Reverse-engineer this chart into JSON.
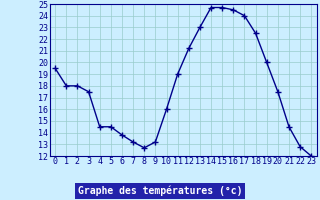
{
  "hours": [
    0,
    1,
    2,
    3,
    4,
    5,
    6,
    7,
    8,
    9,
    10,
    11,
    12,
    13,
    14,
    15,
    16,
    17,
    18,
    19,
    20,
    21,
    22,
    23
  ],
  "temperatures": [
    19.5,
    18.0,
    18.0,
    17.5,
    14.5,
    14.5,
    13.8,
    13.2,
    12.7,
    13.2,
    16.0,
    19.0,
    21.2,
    23.0,
    24.7,
    24.7,
    24.5,
    24.0,
    22.5,
    20.0,
    17.5,
    14.5,
    12.8,
    12.0
  ],
  "line_color": "#00008b",
  "marker": "+",
  "bg_color": "#cceeff",
  "grid_color": "#99cccc",
  "tick_color": "#00008b",
  "xlabel": "Graphe des températures (°c)",
  "xlabel_bg": "#2222aa",
  "xlabel_fg": "#ffffff",
  "ylim": [
    12,
    25
  ],
  "yticks": [
    12,
    13,
    14,
    15,
    16,
    17,
    18,
    19,
    20,
    21,
    22,
    23,
    24,
    25
  ],
  "xticks": [
    0,
    1,
    2,
    3,
    4,
    5,
    6,
    7,
    8,
    9,
    10,
    11,
    12,
    13,
    14,
    15,
    16,
    17,
    18,
    19,
    20,
    21,
    22,
    23
  ],
  "tick_fontsize": 6,
  "label_fontsize": 7
}
